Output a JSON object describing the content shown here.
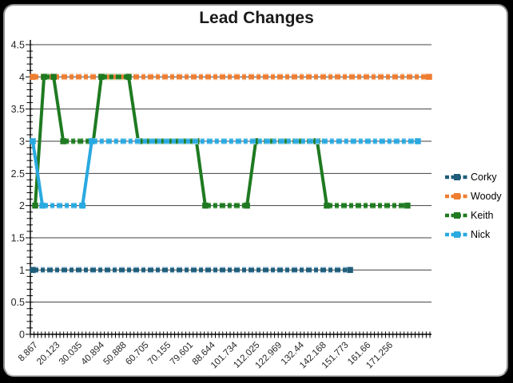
{
  "window": {
    "background": "#000000",
    "panel_background": "#ffffff",
    "panel_border": "#8f8f8f"
  },
  "chart_data": {
    "type": "line",
    "title": "Lead Changes",
    "xlabel": "",
    "ylabel": "",
    "ylim": [
      0,
      4.5
    ],
    "y_tick_labels": [
      "0",
      "0.5",
      "1",
      "1.5",
      "2",
      "2.5",
      "3",
      "3.5",
      "4",
      "4.5"
    ],
    "y_minor_tick_step": 0.1,
    "x_tick_labels": [
      "8.867",
      "20.123",
      "30.035",
      "40.894",
      "50.888",
      "60.705",
      "70.155",
      "79.601",
      "88.644",
      "101.734",
      "112.025",
      "122.969",
      "132.44",
      "142.168",
      "151.773",
      "161.66",
      "171.256"
    ],
    "x_minor_ticks_between_labels": 6,
    "grid": "horizontal-every-0.5",
    "legend_position": "right",
    "axis_color": "#000000",
    "gridline_color": "#404040",
    "tick_label_color": "#262626",
    "line_style": "dashed-with-square-markers",
    "series": [
      {
        "name": "Corky",
        "color": "#1F5D7A",
        "halo": "#A3C8DC",
        "points": [
          [
            0.006,
            1
          ],
          [
            0.797,
            1
          ]
        ]
      },
      {
        "name": "Woody",
        "color": "#EE7D30",
        "halo": "#F7BD92",
        "points": [
          [
            0.006,
            4
          ],
          [
            0.994,
            4
          ]
        ]
      },
      {
        "name": "Keith",
        "color": "#1F7A21",
        "halo": "#93CB93",
        "points": [
          [
            0.012,
            2
          ],
          [
            0.034,
            4
          ],
          [
            0.058,
            4
          ],
          [
            0.082,
            3
          ],
          [
            0.157,
            3
          ],
          [
            0.177,
            4
          ],
          [
            0.245,
            4
          ],
          [
            0.269,
            3
          ],
          [
            0.414,
            3
          ],
          [
            0.436,
            2
          ],
          [
            0.54,
            2
          ],
          [
            0.562,
            3
          ],
          [
            0.715,
            3
          ],
          [
            0.739,
            2
          ],
          [
            0.94,
            2
          ]
        ]
      },
      {
        "name": "Nick",
        "color": "#29A9E0",
        "halo": "#A0DAF4",
        "points": [
          [
            0.006,
            3
          ],
          [
            0.03,
            2
          ],
          [
            0.13,
            2
          ],
          [
            0.153,
            3
          ],
          [
            0.966,
            3
          ]
        ]
      }
    ]
  }
}
